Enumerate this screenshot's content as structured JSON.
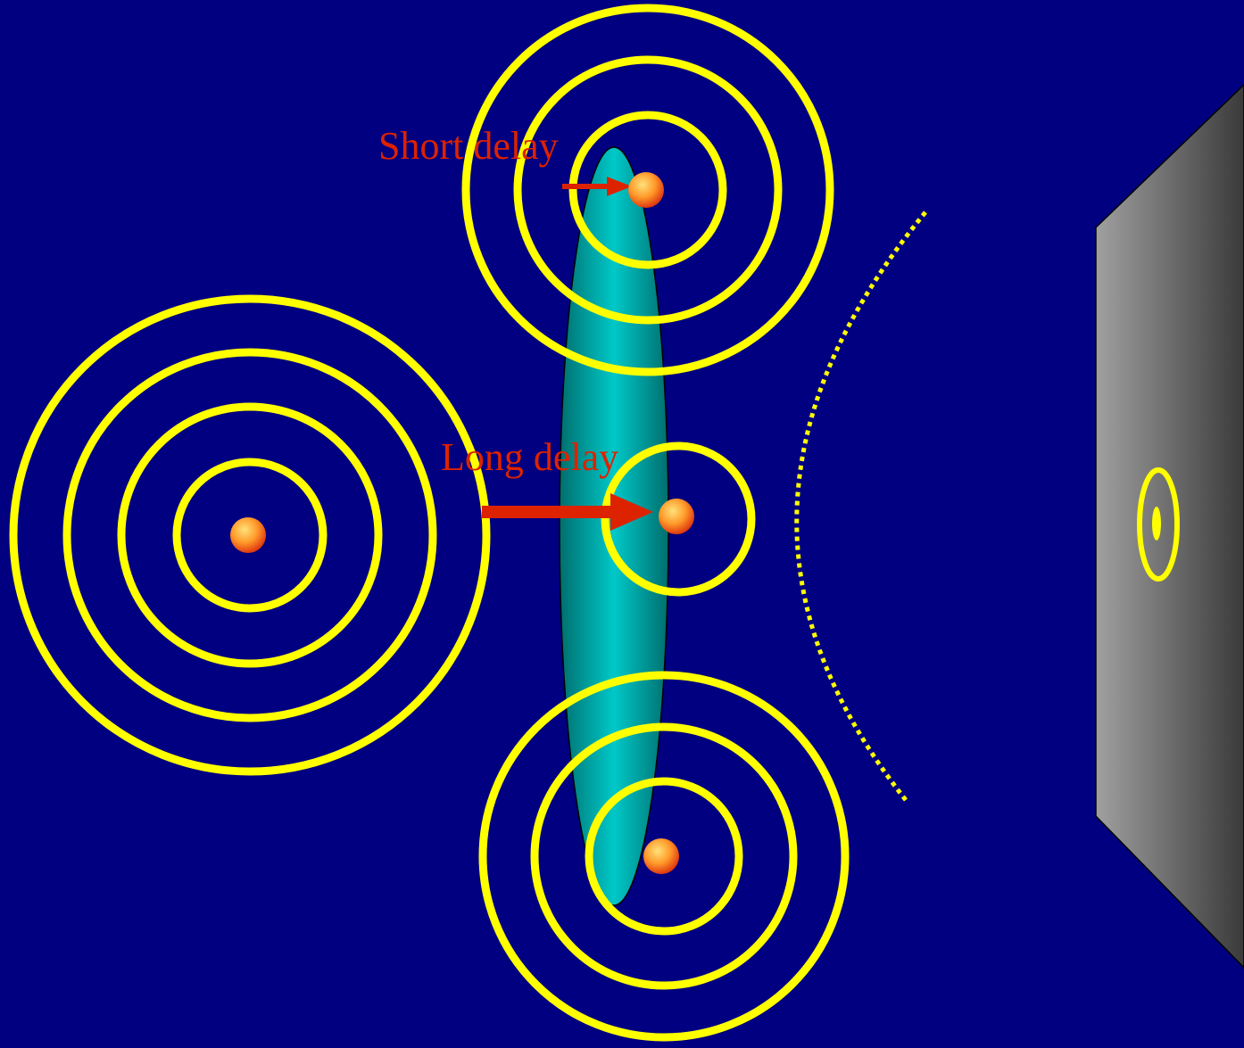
{
  "colors": {
    "background": "#000080",
    "wavefront": "#ffff00",
    "delay_label": "#dd2200",
    "arrow": "#dd2200",
    "lens_light": "#00c8c8",
    "lens_dark": "#006e6e",
    "screen_light": "#a0a0a0",
    "screen_dark": "#3a3a3a"
  },
  "labels": {
    "short_delay": "Short delay",
    "long_delay": "Long delay"
  },
  "icons": {
    "point_source": "orange-glowing-dot-icon",
    "wavefront": "concentric-yellow-rings",
    "lens": "cyan-elongated-ellipse",
    "screen": "gray-gradient-panel"
  }
}
